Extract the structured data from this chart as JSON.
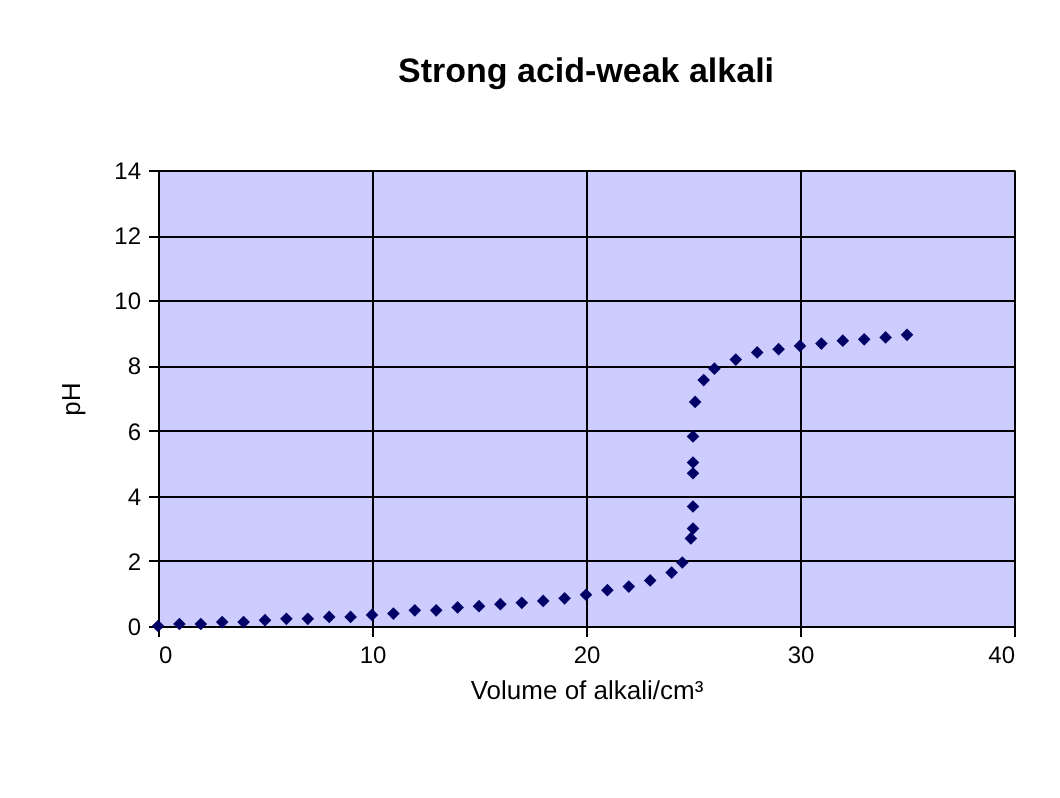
{
  "chart_data": {
    "type": "scatter",
    "title": "Strong acid-weak alkali",
    "xlabel": "Volume of alkali/cm³",
    "ylabel": "pH",
    "x": [
      0,
      1,
      2,
      3,
      4,
      5,
      6,
      7,
      8,
      9,
      10,
      11,
      12,
      13,
      14,
      15,
      16,
      17,
      18,
      19,
      20,
      21,
      22,
      23,
      24,
      24.5,
      24.9,
      25,
      25,
      25,
      25,
      25,
      25.1,
      25.5,
      26,
      27,
      28,
      29,
      30,
      31,
      32,
      33,
      34,
      35
    ],
    "series": [
      {
        "color": "#000066",
        "values": [
          0,
          0.06,
          0.06,
          0.12,
          0.12,
          0.18,
          0.22,
          0.22,
          0.28,
          0.28,
          0.34,
          0.38,
          0.48,
          0.48,
          0.57,
          0.61,
          0.67,
          0.71,
          0.77,
          0.85,
          0.96,
          1.1,
          1.21,
          1.4,
          1.64,
          1.95,
          2.69,
          2.99,
          3.67,
          4.69,
          5.02,
          5.82,
          6.88,
          7.55,
          7.9,
          8.18,
          8.4,
          8.5,
          8.6,
          8.67,
          8.76,
          8.8,
          8.86,
          8.94
        ]
      }
    ],
    "xlim": [
      0,
      40
    ],
    "xticks": [
      0,
      10,
      20,
      30,
      40
    ],
    "ylim": [
      0,
      14
    ],
    "yticks": [
      0,
      2,
      4,
      6,
      8,
      10,
      12,
      14
    ],
    "grid": true,
    "marker": "diamond"
  }
}
